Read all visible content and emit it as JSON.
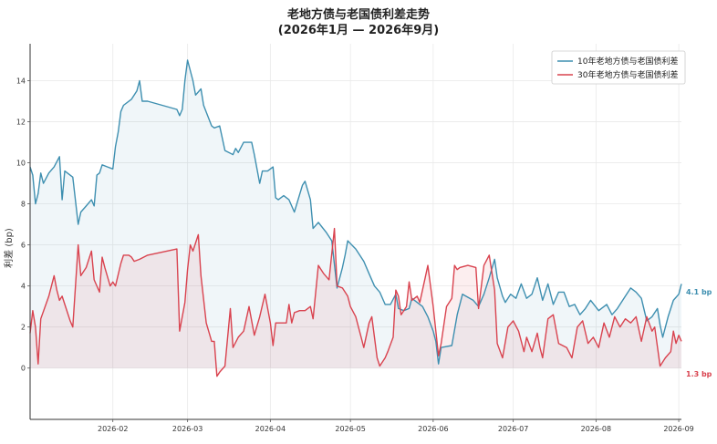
{
  "chart_data": {
    "type": "line",
    "title": "老地方债与老国债利差走势",
    "subtitle": "(2026年1月 — 2026年9月)",
    "xlabel": "",
    "ylabel": "利差 (bp)",
    "ylim": [
      -2.5,
      15.8
    ],
    "xlim": [
      "2026-01-01",
      "2026-09-02"
    ],
    "y_ticks": [
      0,
      2,
      4,
      6,
      8,
      10,
      12,
      14
    ],
    "x_ticks": [
      "2026-02-01",
      "2026-03-01",
      "2026-04-01",
      "2026-05-01",
      "2026-06-01",
      "2026-07-01",
      "2026-08-01",
      "2026-09-01"
    ],
    "x_tick_labels": [
      "2026-02",
      "2026-03",
      "2026-04",
      "2026-05",
      "2026-06",
      "2026-07",
      "2026-08",
      "2026-09"
    ],
    "grid": true,
    "legend_position": "top-right",
    "series": [
      {
        "name": "10年老地方债与老国债利差",
        "color": "#3e8fb0",
        "end_label": "4.1 bp",
        "points": [
          [
            "2026-01-01",
            9.8
          ],
          [
            "2026-01-02",
            9.4
          ],
          [
            "2026-01-03",
            8.0
          ],
          [
            "2026-01-04",
            8.5
          ],
          [
            "2026-01-05",
            9.5
          ],
          [
            "2026-01-06",
            9.0
          ],
          [
            "2026-01-08",
            9.5
          ],
          [
            "2026-01-10",
            9.8
          ],
          [
            "2026-01-12",
            10.3
          ],
          [
            "2026-01-13",
            8.2
          ],
          [
            "2026-01-14",
            9.6
          ],
          [
            "2026-01-17",
            9.3
          ],
          [
            "2026-01-19",
            7.0
          ],
          [
            "2026-01-20",
            7.6
          ],
          [
            "2026-01-22",
            7.9
          ],
          [
            "2026-01-24",
            8.2
          ],
          [
            "2026-01-25",
            7.9
          ],
          [
            "2026-01-26",
            9.4
          ],
          [
            "2026-01-27",
            9.5
          ],
          [
            "2026-01-28",
            9.9
          ],
          [
            "2026-01-30",
            9.8
          ],
          [
            "2026-02-01",
            9.7
          ],
          [
            "2026-02-02",
            10.8
          ],
          [
            "2026-02-03",
            11.5
          ],
          [
            "2026-02-04",
            12.5
          ],
          [
            "2026-02-05",
            12.8
          ],
          [
            "2026-02-08",
            13.1
          ],
          [
            "2026-02-10",
            13.5
          ],
          [
            "2026-02-11",
            14.0
          ],
          [
            "2026-02-12",
            13.0
          ],
          [
            "2026-02-14",
            13.0
          ],
          [
            "2026-02-25",
            12.6
          ],
          [
            "2026-02-26",
            12.3
          ],
          [
            "2026-02-27",
            12.6
          ],
          [
            "2026-02-28",
            14.0
          ],
          [
            "2026-03-01",
            15.0
          ],
          [
            "2026-03-03",
            14.0
          ],
          [
            "2026-03-04",
            13.3
          ],
          [
            "2026-03-06",
            13.6
          ],
          [
            "2026-03-07",
            12.8
          ],
          [
            "2026-03-10",
            11.8
          ],
          [
            "2026-03-11",
            11.7
          ],
          [
            "2026-03-13",
            11.8
          ],
          [
            "2026-03-15",
            10.6
          ],
          [
            "2026-03-18",
            10.4
          ],
          [
            "2026-03-19",
            10.7
          ],
          [
            "2026-03-20",
            10.5
          ],
          [
            "2026-03-22",
            11.0
          ],
          [
            "2026-03-25",
            11.0
          ],
          [
            "2026-03-26",
            10.4
          ],
          [
            "2026-03-28",
            9.0
          ],
          [
            "2026-03-29",
            9.6
          ],
          [
            "2026-03-31",
            9.6
          ],
          [
            "2026-04-02",
            9.8
          ],
          [
            "2026-04-03",
            8.3
          ],
          [
            "2026-04-04",
            8.2
          ],
          [
            "2026-04-06",
            8.4
          ],
          [
            "2026-04-08",
            8.2
          ],
          [
            "2026-04-10",
            7.6
          ],
          [
            "2026-04-13",
            8.9
          ],
          [
            "2026-04-14",
            9.1
          ],
          [
            "2026-04-16",
            8.2
          ],
          [
            "2026-04-17",
            6.8
          ],
          [
            "2026-04-19",
            7.1
          ],
          [
            "2026-04-22",
            6.6
          ],
          [
            "2026-04-24",
            6.2
          ],
          [
            "2026-04-26",
            3.9
          ],
          [
            "2026-04-28",
            4.9
          ],
          [
            "2026-04-29",
            5.5
          ],
          [
            "2026-04-30",
            6.2
          ],
          [
            "2026-05-03",
            5.8
          ],
          [
            "2026-05-06",
            5.2
          ],
          [
            "2026-05-08",
            4.6
          ],
          [
            "2026-05-10",
            4.0
          ],
          [
            "2026-05-12",
            3.7
          ],
          [
            "2026-05-14",
            3.1
          ],
          [
            "2026-05-16",
            3.1
          ],
          [
            "2026-05-18",
            3.6
          ],
          [
            "2026-05-19",
            2.9
          ],
          [
            "2026-05-21",
            2.8
          ],
          [
            "2026-05-23",
            2.9
          ],
          [
            "2026-05-24",
            3.4
          ],
          [
            "2026-05-26",
            3.2
          ],
          [
            "2026-05-28",
            3.0
          ],
          [
            "2026-05-30",
            2.5
          ],
          [
            "2026-06-01",
            1.8
          ],
          [
            "2026-06-02",
            1.3
          ],
          [
            "2026-06-03",
            0.2
          ],
          [
            "2026-06-04",
            1.0
          ],
          [
            "2026-06-08",
            1.1
          ],
          [
            "2026-06-10",
            2.6
          ],
          [
            "2026-06-12",
            3.6
          ],
          [
            "2026-06-16",
            3.3
          ],
          [
            "2026-06-18",
            3.0
          ],
          [
            "2026-06-20",
            3.6
          ],
          [
            "2026-06-22",
            4.4
          ],
          [
            "2026-06-24",
            5.3
          ],
          [
            "2026-06-25",
            4.4
          ],
          [
            "2026-06-27",
            3.5
          ],
          [
            "2026-06-28",
            3.2
          ],
          [
            "2026-06-30",
            3.6
          ],
          [
            "2026-07-02",
            3.4
          ],
          [
            "2026-07-04",
            4.1
          ],
          [
            "2026-07-06",
            3.4
          ],
          [
            "2026-07-08",
            3.6
          ],
          [
            "2026-07-10",
            4.4
          ],
          [
            "2026-07-12",
            3.3
          ],
          [
            "2026-07-14",
            4.1
          ],
          [
            "2026-07-16",
            3.1
          ],
          [
            "2026-07-18",
            3.7
          ],
          [
            "2026-07-20",
            3.7
          ],
          [
            "2026-07-22",
            3.0
          ],
          [
            "2026-07-24",
            3.1
          ],
          [
            "2026-07-26",
            2.6
          ],
          [
            "2026-07-28",
            2.9
          ],
          [
            "2026-07-30",
            3.3
          ],
          [
            "2026-08-02",
            2.8
          ],
          [
            "2026-08-05",
            3.1
          ],
          [
            "2026-08-07",
            2.6
          ],
          [
            "2026-08-09",
            2.9
          ],
          [
            "2026-08-12",
            3.5
          ],
          [
            "2026-08-14",
            3.9
          ],
          [
            "2026-08-16",
            3.7
          ],
          [
            "2026-08-18",
            3.4
          ],
          [
            "2026-08-20",
            2.3
          ],
          [
            "2026-08-22",
            2.5
          ],
          [
            "2026-08-24",
            2.9
          ],
          [
            "2026-08-25",
            2.1
          ],
          [
            "2026-08-26",
            1.5
          ],
          [
            "2026-08-28",
            2.5
          ],
          [
            "2026-08-30",
            3.3
          ],
          [
            "2026-09-01",
            3.6
          ],
          [
            "2026-09-02",
            4.1
          ]
        ]
      },
      {
        "name": "30年老地方债与老国债利差",
        "color": "#d9434f",
        "end_label": "1.3 bp",
        "points": [
          [
            "2026-01-01",
            1.7
          ],
          [
            "2026-01-02",
            2.8
          ],
          [
            "2026-01-03",
            2.0
          ],
          [
            "2026-01-04",
            0.2
          ],
          [
            "2026-01-05",
            2.4
          ],
          [
            "2026-01-08",
            3.5
          ],
          [
            "2026-01-10",
            4.5
          ],
          [
            "2026-01-11",
            3.8
          ],
          [
            "2026-01-12",
            3.3
          ],
          [
            "2026-01-13",
            3.5
          ],
          [
            "2026-01-16",
            2.3
          ],
          [
            "2026-01-17",
            2.0
          ],
          [
            "2026-01-19",
            6.0
          ],
          [
            "2026-01-20",
            4.5
          ],
          [
            "2026-01-22",
            4.9
          ],
          [
            "2026-01-24",
            5.7
          ],
          [
            "2026-01-25",
            4.3
          ],
          [
            "2026-01-27",
            3.7
          ],
          [
            "2026-01-28",
            5.4
          ],
          [
            "2026-01-29",
            4.9
          ],
          [
            "2026-01-31",
            4.0
          ],
          [
            "2026-02-01",
            4.2
          ],
          [
            "2026-02-02",
            4.0
          ],
          [
            "2026-02-04",
            5.1
          ],
          [
            "2026-02-05",
            5.5
          ],
          [
            "2026-02-07",
            5.5
          ],
          [
            "2026-02-08",
            5.4
          ],
          [
            "2026-02-09",
            5.2
          ],
          [
            "2026-02-11",
            5.3
          ],
          [
            "2026-02-14",
            5.5
          ],
          [
            "2026-02-25",
            5.8
          ],
          [
            "2026-02-26",
            1.8
          ],
          [
            "2026-02-27",
            2.5
          ],
          [
            "2026-02-28",
            3.2
          ],
          [
            "2026-03-01",
            4.8
          ],
          [
            "2026-03-02",
            6.0
          ],
          [
            "2026-03-03",
            5.7
          ],
          [
            "2026-03-05",
            6.5
          ],
          [
            "2026-03-06",
            4.5
          ],
          [
            "2026-03-08",
            2.2
          ],
          [
            "2026-03-10",
            1.3
          ],
          [
            "2026-03-11",
            1.3
          ],
          [
            "2026-03-12",
            -0.4
          ],
          [
            "2026-03-13",
            -0.2
          ],
          [
            "2026-03-15",
            0.1
          ],
          [
            "2026-03-17",
            2.9
          ],
          [
            "2026-03-18",
            1.0
          ],
          [
            "2026-03-20",
            1.5
          ],
          [
            "2026-03-22",
            1.8
          ],
          [
            "2026-03-24",
            3.0
          ],
          [
            "2026-03-26",
            1.6
          ],
          [
            "2026-03-28",
            2.5
          ],
          [
            "2026-03-30",
            3.6
          ],
          [
            "2026-04-01",
            2.2
          ],
          [
            "2026-04-02",
            1.1
          ],
          [
            "2026-04-03",
            2.2
          ],
          [
            "2026-04-05",
            2.2
          ],
          [
            "2026-04-07",
            2.2
          ],
          [
            "2026-04-08",
            3.1
          ],
          [
            "2026-04-09",
            2.2
          ],
          [
            "2026-04-10",
            2.7
          ],
          [
            "2026-04-12",
            2.8
          ],
          [
            "2026-04-14",
            2.8
          ],
          [
            "2026-04-16",
            3.0
          ],
          [
            "2026-04-17",
            2.4
          ],
          [
            "2026-04-19",
            5.0
          ],
          [
            "2026-04-21",
            4.6
          ],
          [
            "2026-04-23",
            4.3
          ],
          [
            "2026-04-25",
            6.8
          ],
          [
            "2026-04-26",
            4.0
          ],
          [
            "2026-04-28",
            3.9
          ],
          [
            "2026-04-30",
            3.5
          ],
          [
            "2026-05-01",
            3.0
          ],
          [
            "2026-05-03",
            2.5
          ],
          [
            "2026-05-05",
            1.5
          ],
          [
            "2026-05-06",
            1.0
          ],
          [
            "2026-05-08",
            2.2
          ],
          [
            "2026-05-09",
            2.5
          ],
          [
            "2026-05-11",
            0.5
          ],
          [
            "2026-05-12",
            0.1
          ],
          [
            "2026-05-14",
            0.5
          ],
          [
            "2026-05-15",
            0.8
          ],
          [
            "2026-05-17",
            1.5
          ],
          [
            "2026-05-18",
            3.8
          ],
          [
            "2026-05-19",
            3.5
          ],
          [
            "2026-05-20",
            2.6
          ],
          [
            "2026-05-22",
            3.0
          ],
          [
            "2026-05-23",
            4.2
          ],
          [
            "2026-05-24",
            3.3
          ],
          [
            "2026-05-26",
            3.5
          ],
          [
            "2026-05-27",
            3.2
          ],
          [
            "2026-05-29",
            4.4
          ],
          [
            "2026-05-30",
            5.0
          ],
          [
            "2026-06-01",
            3.0
          ],
          [
            "2026-06-02",
            1.8
          ],
          [
            "2026-06-03",
            0.6
          ],
          [
            "2026-06-04",
            1.2
          ],
          [
            "2026-06-06",
            3.0
          ],
          [
            "2026-06-08",
            3.4
          ],
          [
            "2026-06-09",
            5.0
          ],
          [
            "2026-06-10",
            4.8
          ],
          [
            "2026-06-11",
            4.9
          ],
          [
            "2026-06-14",
            5.0
          ],
          [
            "2026-06-17",
            4.9
          ],
          [
            "2026-06-18",
            2.9
          ],
          [
            "2026-06-20",
            5.0
          ],
          [
            "2026-06-22",
            5.5
          ],
          [
            "2026-06-24",
            3.8
          ],
          [
            "2026-06-25",
            1.2
          ],
          [
            "2026-06-27",
            0.5
          ],
          [
            "2026-06-29",
            2.0
          ],
          [
            "2026-07-01",
            2.3
          ],
          [
            "2026-07-03",
            1.8
          ],
          [
            "2026-07-05",
            0.8
          ],
          [
            "2026-07-06",
            1.5
          ],
          [
            "2026-07-08",
            0.8
          ],
          [
            "2026-07-10",
            1.7
          ],
          [
            "2026-07-11",
            1.0
          ],
          [
            "2026-07-12",
            0.5
          ],
          [
            "2026-07-14",
            2.4
          ],
          [
            "2026-07-16",
            2.6
          ],
          [
            "2026-07-18",
            1.2
          ],
          [
            "2026-07-21",
            1.0
          ],
          [
            "2026-07-23",
            0.5
          ],
          [
            "2026-07-25",
            2.0
          ],
          [
            "2026-07-27",
            2.3
          ],
          [
            "2026-07-29",
            1.2
          ],
          [
            "2026-07-31",
            1.5
          ],
          [
            "2026-08-02",
            1.0
          ],
          [
            "2026-08-04",
            2.2
          ],
          [
            "2026-08-06",
            1.5
          ],
          [
            "2026-08-08",
            2.5
          ],
          [
            "2026-08-10",
            2.0
          ],
          [
            "2026-08-12",
            2.4
          ],
          [
            "2026-08-14",
            2.2
          ],
          [
            "2026-08-16",
            2.5
          ],
          [
            "2026-08-18",
            1.3
          ],
          [
            "2026-08-20",
            2.5
          ],
          [
            "2026-08-22",
            1.8
          ],
          [
            "2026-08-23",
            2.0
          ],
          [
            "2026-08-25",
            0.1
          ],
          [
            "2026-08-27",
            0.5
          ],
          [
            "2026-08-29",
            0.8
          ],
          [
            "2026-08-30",
            1.8
          ],
          [
            "2026-08-31",
            1.2
          ],
          [
            "2026-09-01",
            1.6
          ],
          [
            "2026-09-02",
            1.3
          ]
        ]
      }
    ]
  }
}
